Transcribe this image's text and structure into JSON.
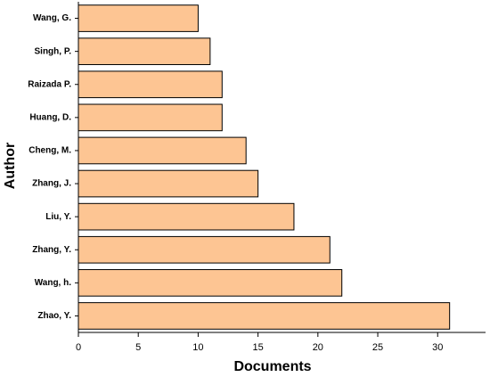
{
  "chart_data": {
    "type": "barh",
    "categories": [
      "Wang, G.",
      "Singh, P.",
      "Raizada P.",
      "Huang, D.",
      "Cheng, M.",
      "Zhang, J.",
      "Liu, Y.",
      "Zhang, Y.",
      "Wang, h.",
      "Zhao, Y."
    ],
    "values": [
      10,
      11,
      12,
      12,
      14,
      15,
      18,
      21,
      22,
      31
    ],
    "color": "#fdc593",
    "xlabel": "Documents",
    "ylabel": "Author",
    "xlim": [
      0,
      34
    ],
    "xticks": [
      0,
      5,
      10,
      15,
      20,
      25,
      30
    ]
  }
}
